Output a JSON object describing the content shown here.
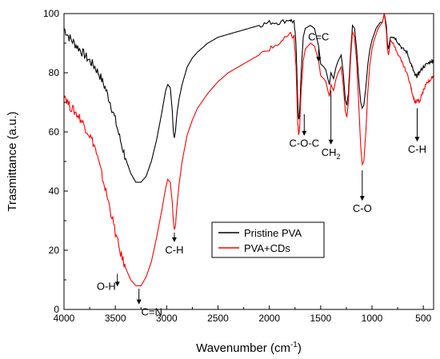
{
  "chart_data": {
    "type": "line",
    "xlabel": "Wavenumber (cm",
    "xlabel_sup": "-1",
    "xlabel_end": ")",
    "ylabel": "Trasmittance (a.u.)",
    "xlim": [
      4000,
      400
    ],
    "ylim": [
      0,
      100
    ],
    "x_ticks": [
      4000,
      3500,
      3000,
      2500,
      2000,
      1500,
      1000,
      500
    ],
    "x_tick_labels": [
      "4000",
      "3500",
      "3000",
      "2500",
      "2000",
      "1500",
      "1000",
      "500"
    ],
    "y_ticks": [
      0,
      20,
      40,
      60,
      80,
      100
    ],
    "y_tick_labels": [
      "0",
      "20",
      "40",
      "60",
      "80",
      "100"
    ],
    "legend_position": "center-right",
    "series": [
      {
        "name": "Pristine PVA",
        "color": "#000000",
        "points": [
          [
            4000,
            95
          ],
          [
            3950,
            92
          ],
          [
            3900,
            90
          ],
          [
            3850,
            88
          ],
          [
            3800,
            86
          ],
          [
            3750,
            84
          ],
          [
            3700,
            82
          ],
          [
            3650,
            79
          ],
          [
            3600,
            75
          ],
          [
            3550,
            70
          ],
          [
            3500,
            64
          ],
          [
            3450,
            57
          ],
          [
            3400,
            51
          ],
          [
            3350,
            46
          ],
          [
            3300,
            43
          ],
          [
            3250,
            43
          ],
          [
            3200,
            45
          ],
          [
            3150,
            50
          ],
          [
            3100,
            57
          ],
          [
            3050,
            66
          ],
          [
            3010,
            74
          ],
          [
            2990,
            76
          ],
          [
            2965,
            75
          ],
          [
            2945,
            67
          ],
          [
            2935,
            60
          ],
          [
            2925,
            58
          ],
          [
            2915,
            60
          ],
          [
            2900,
            66
          ],
          [
            2880,
            71
          ],
          [
            2850,
            76
          ],
          [
            2800,
            82
          ],
          [
            2750,
            85
          ],
          [
            2700,
            87
          ],
          [
            2600,
            90
          ],
          [
            2500,
            92
          ],
          [
            2400,
            93
          ],
          [
            2300,
            94
          ],
          [
            2200,
            95
          ],
          [
            2100,
            96
          ],
          [
            2000,
            97
          ],
          [
            1900,
            97
          ],
          [
            1800,
            98
          ],
          [
            1760,
            97
          ],
          [
            1740,
            90
          ],
          [
            1725,
            72
          ],
          [
            1715,
            64
          ],
          [
            1705,
            66
          ],
          [
            1690,
            80
          ],
          [
            1670,
            92
          ],
          [
            1650,
            95
          ],
          [
            1600,
            96
          ],
          [
            1560,
            95
          ],
          [
            1520,
            89
          ],
          [
            1500,
            83
          ],
          [
            1470,
            82
          ],
          [
            1450,
            81
          ],
          [
            1430,
            78
          ],
          [
            1415,
            76
          ],
          [
            1400,
            80
          ],
          [
            1375,
            78
          ],
          [
            1350,
            82
          ],
          [
            1330,
            84
          ],
          [
            1300,
            86
          ],
          [
            1280,
            80
          ],
          [
            1260,
            71
          ],
          [
            1245,
            69
          ],
          [
            1230,
            73
          ],
          [
            1210,
            86
          ],
          [
            1190,
            96
          ],
          [
            1170,
            95
          ],
          [
            1150,
            88
          ],
          [
            1130,
            78
          ],
          [
            1110,
            70
          ],
          [
            1095,
            68
          ],
          [
            1080,
            69
          ],
          [
            1060,
            75
          ],
          [
            1040,
            83
          ],
          [
            1020,
            88
          ],
          [
            1000,
            91
          ],
          [
            980,
            93
          ],
          [
            960,
            95
          ],
          [
            940,
            96
          ],
          [
            920,
            97
          ],
          [
            900,
            97
          ],
          [
            880,
            100
          ],
          [
            860,
            96
          ],
          [
            850,
            90
          ],
          [
            840,
            88
          ],
          [
            830,
            90
          ],
          [
            820,
            92
          ],
          [
            780,
            92
          ],
          [
            740,
            90
          ],
          [
            700,
            88
          ],
          [
            660,
            87
          ],
          [
            620,
            83
          ],
          [
            600,
            81
          ],
          [
            580,
            79
          ],
          [
            560,
            79
          ],
          [
            540,
            80
          ],
          [
            500,
            82
          ],
          [
            460,
            83
          ],
          [
            420,
            84
          ],
          [
            400,
            84
          ]
        ]
      },
      {
        "name": "PVA+CDs",
        "color": "#ff0000",
        "points": [
          [
            4000,
            73
          ],
          [
            3950,
            69
          ],
          [
            3900,
            67
          ],
          [
            3850,
            65
          ],
          [
            3800,
            62
          ],
          [
            3750,
            59
          ],
          [
            3700,
            55
          ],
          [
            3650,
            48
          ],
          [
            3600,
            41
          ],
          [
            3550,
            34
          ],
          [
            3500,
            26
          ],
          [
            3450,
            19
          ],
          [
            3400,
            14
          ],
          [
            3350,
            10
          ],
          [
            3300,
            8
          ],
          [
            3250,
            8
          ],
          [
            3200,
            11
          ],
          [
            3150,
            16
          ],
          [
            3100,
            24
          ],
          [
            3050,
            33
          ],
          [
            3010,
            41
          ],
          [
            2990,
            44
          ],
          [
            2965,
            43
          ],
          [
            2945,
            36
          ],
          [
            2935,
            30
          ],
          [
            2925,
            27
          ],
          [
            2915,
            28
          ],
          [
            2900,
            35
          ],
          [
            2880,
            42
          ],
          [
            2850,
            50
          ],
          [
            2800,
            59
          ],
          [
            2750,
            64
          ],
          [
            2700,
            68
          ],
          [
            2600,
            73
          ],
          [
            2500,
            77
          ],
          [
            2400,
            80
          ],
          [
            2300,
            82
          ],
          [
            2200,
            84
          ],
          [
            2100,
            86
          ],
          [
            2000,
            88
          ],
          [
            1900,
            90
          ],
          [
            1800,
            93
          ],
          [
            1760,
            92
          ],
          [
            1740,
            82
          ],
          [
            1725,
            64
          ],
          [
            1715,
            59
          ],
          [
            1705,
            62
          ],
          [
            1690,
            74
          ],
          [
            1670,
            84
          ],
          [
            1650,
            88
          ],
          [
            1600,
            90
          ],
          [
            1560,
            89
          ],
          [
            1520,
            84
          ],
          [
            1500,
            79
          ],
          [
            1470,
            78
          ],
          [
            1450,
            77
          ],
          [
            1430,
            74
          ],
          [
            1415,
            72
          ],
          [
            1400,
            76
          ],
          [
            1375,
            74
          ],
          [
            1350,
            78
          ],
          [
            1330,
            80
          ],
          [
            1300,
            82
          ],
          [
            1280,
            76
          ],
          [
            1260,
            67
          ],
          [
            1245,
            65
          ],
          [
            1230,
            70
          ],
          [
            1210,
            84
          ],
          [
            1190,
            94
          ],
          [
            1170,
            92
          ],
          [
            1150,
            84
          ],
          [
            1130,
            70
          ],
          [
            1110,
            55
          ],
          [
            1095,
            49
          ],
          [
            1080,
            50
          ],
          [
            1060,
            60
          ],
          [
            1040,
            74
          ],
          [
            1020,
            83
          ],
          [
            1000,
            88
          ],
          [
            980,
            91
          ],
          [
            960,
            93
          ],
          [
            940,
            95
          ],
          [
            920,
            96
          ],
          [
            900,
            97
          ],
          [
            880,
            100
          ],
          [
            860,
            94
          ],
          [
            850,
            88
          ],
          [
            840,
            86
          ],
          [
            830,
            88
          ],
          [
            820,
            91
          ],
          [
            780,
            89
          ],
          [
            740,
            86
          ],
          [
            700,
            83
          ],
          [
            660,
            80
          ],
          [
            620,
            75
          ],
          [
            600,
            72
          ],
          [
            580,
            70
          ],
          [
            560,
            71
          ],
          [
            540,
            70
          ],
          [
            520,
            72
          ],
          [
            500,
            74
          ],
          [
            460,
            77
          ],
          [
            420,
            78
          ],
          [
            400,
            79
          ]
        ]
      }
    ],
    "annotations": [
      {
        "label": "O-H",
        "x": 3480,
        "y_from": 12,
        "y_to": 8
      },
      {
        "label": "C=N",
        "x": 3270,
        "y_from": 7,
        "y_to": 2
      },
      {
        "label": "C-H",
        "x": 2925,
        "y_from": 26,
        "y_to": 23
      },
      {
        "label": "C-O-C",
        "x": 1660,
        "y_from": 66,
        "y_to": 59
      },
      {
        "label": "C=C",
        "x": 1520,
        "y_from": 88,
        "y_to": 84
      },
      {
        "label": "CH",
        "sub": "2",
        "x": 1400,
        "y_from": 74,
        "y_to": 56
      },
      {
        "label": "C-O",
        "x": 1095,
        "y_from": 47,
        "y_to": 37
      },
      {
        "label": "C-H",
        "x": 560,
        "y_from": 68,
        "y_to": 57
      }
    ]
  }
}
